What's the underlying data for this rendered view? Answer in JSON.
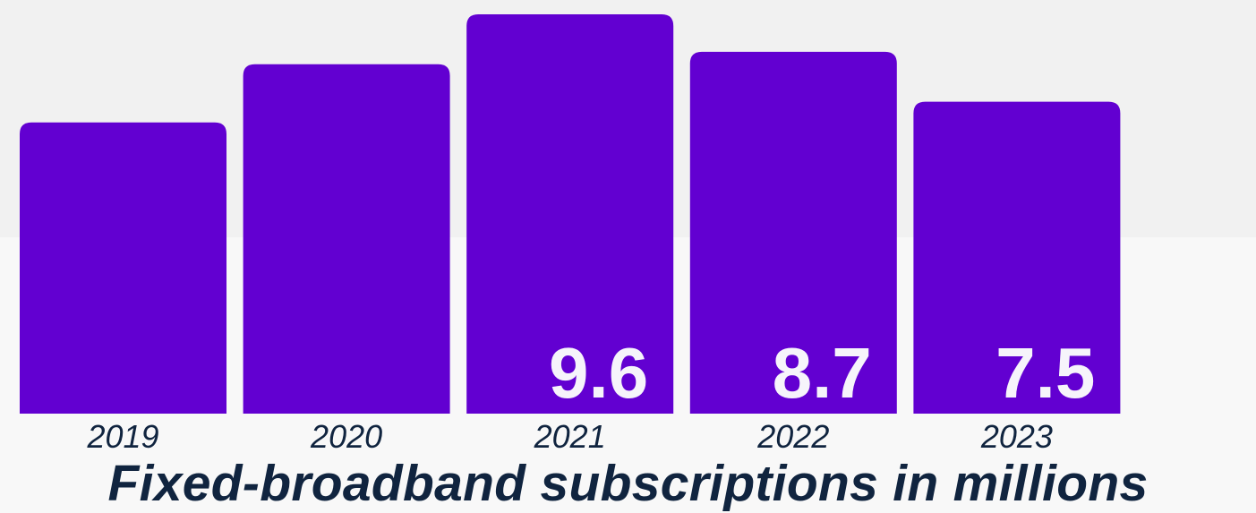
{
  "chart_data": {
    "type": "bar",
    "title": "Fixed-broadband subscriptions in millions",
    "categories": [
      "2019",
      "2020",
      "2021",
      "2022",
      "2023"
    ],
    "values": [
      7.0,
      8.4,
      9.6,
      8.7,
      7.5
    ],
    "data_labels": [
      "",
      "",
      "9.6",
      "8.7",
      "7.5"
    ],
    "xlabel": "",
    "ylabel": "",
    "ylim": [
      0,
      10
    ],
    "grid": false,
    "legend": "none",
    "colors": {
      "bar": "#6200d1",
      "value_label": "#f6f4fb",
      "category_label": "#10243f",
      "title": "#10243f"
    }
  }
}
